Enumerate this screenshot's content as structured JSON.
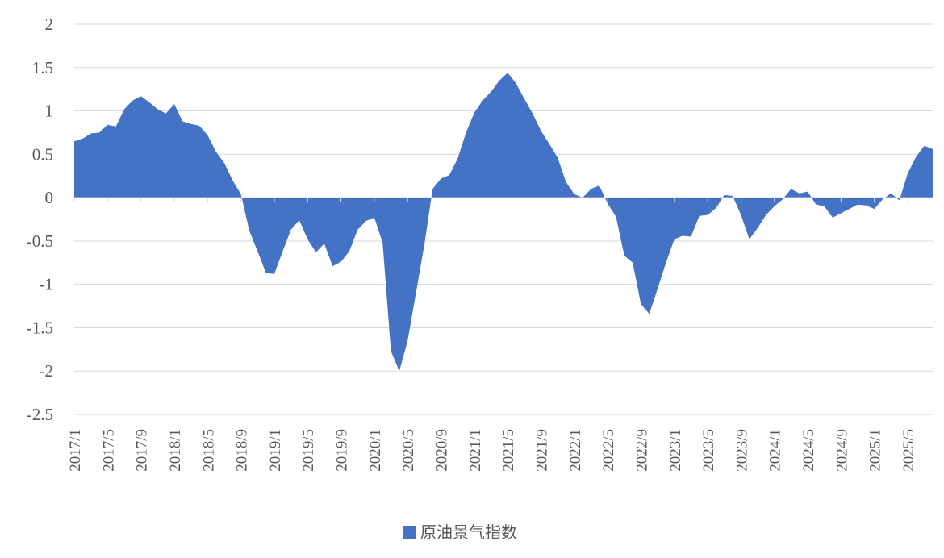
{
  "chart_data": {
    "type": "area",
    "categories": [
      "2017/1",
      null,
      null,
      null,
      "2017/5",
      null,
      null,
      null,
      "2017/9",
      null,
      null,
      null,
      "2018/1",
      null,
      null,
      null,
      "2018/5",
      null,
      null,
      null,
      "2018/9",
      null,
      null,
      null,
      "2019/1",
      null,
      null,
      null,
      "2019/5",
      null,
      null,
      null,
      "2019/9",
      null,
      null,
      null,
      "2020/1",
      null,
      null,
      null,
      "2020/5",
      null,
      null,
      null,
      "2020/9",
      null,
      null,
      null,
      "2021/1",
      null,
      null,
      null,
      "2021/5",
      null,
      null,
      null,
      "2021/9",
      null,
      null,
      null,
      "2022/1",
      null,
      null,
      null,
      "2022/5",
      null,
      null,
      null,
      "2022/9",
      null,
      null,
      null,
      "2023/1",
      null,
      null,
      null,
      "2023/5",
      null,
      null,
      null,
      "2023/9",
      null,
      null,
      null,
      "2024/1",
      null,
      null,
      null,
      "2024/5",
      null,
      null,
      null,
      "2024/9",
      null,
      null,
      null,
      "2025/1",
      null,
      null,
      null,
      "2025/5",
      null,
      null,
      null
    ],
    "series": [
      {
        "name": "原油景气指数",
        "color": "#4472c4",
        "values": [
          0.65,
          0.68,
          0.74,
          0.75,
          0.84,
          0.82,
          1.02,
          1.12,
          1.17,
          1.1,
          1.02,
          0.97,
          1.08,
          0.88,
          0.85,
          0.83,
          0.72,
          0.53,
          0.4,
          0.2,
          0.04,
          -0.38,
          -0.62,
          -0.87,
          -0.88,
          -0.62,
          -0.37,
          -0.26,
          -0.48,
          -0.63,
          -0.53,
          -0.79,
          -0.74,
          -0.62,
          -0.37,
          -0.27,
          -0.23,
          -0.52,
          -1.77,
          -2.0,
          -1.65,
          -1.1,
          -0.55,
          0.1,
          0.22,
          0.26,
          0.45,
          0.75,
          0.98,
          1.12,
          1.22,
          1.35,
          1.44,
          1.32,
          1.14,
          0.97,
          0.77,
          0.62,
          0.46,
          0.18,
          0.04,
          0.0,
          0.1,
          0.14,
          -0.07,
          -0.22,
          -0.67,
          -0.75,
          -1.23,
          -1.34,
          -1.05,
          -0.75,
          -0.48,
          -0.44,
          -0.45,
          -0.21,
          -0.2,
          -0.12,
          0.03,
          0.02,
          -0.2,
          -0.48,
          -0.35,
          -0.2,
          -0.1,
          -0.02,
          0.1,
          0.05,
          0.07,
          -0.08,
          -0.1,
          -0.23,
          -0.18,
          -0.13,
          -0.08,
          -0.09,
          -0.13,
          -0.02,
          0.05,
          -0.03,
          0.28,
          0.47,
          0.6,
          0.56
        ]
      }
    ],
    "ylim": [
      -2.5,
      2
    ],
    "yticks": [
      2,
      1.5,
      1,
      0.5,
      0,
      -0.5,
      -1,
      -1.5,
      -2,
      -2.5
    ],
    "grid": true,
    "legend": "bottom"
  }
}
